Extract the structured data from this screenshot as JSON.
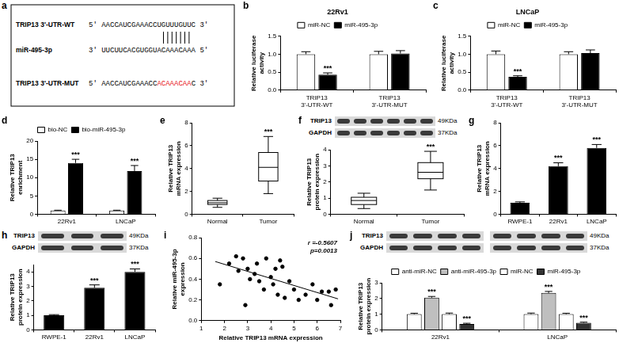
{
  "diagram": {
    "panel": "a",
    "rows": [
      {
        "label": "TRIP13 3'-UTR-WT",
        "parts": [
          {
            "text": "5' AACCAUCGAAACCUGUUUGUUC 3'"
          }
        ]
      },
      {
        "label": "miR-495-3p",
        "parts": [
          {
            "text": "3' UUCUUCACGUGGUACAAACAAA 5'"
          }
        ]
      },
      {
        "label": "TRIP13 3'-UTR-MUT",
        "parts": [
          {
            "text": "5' AACCAUCGAAACC"
          },
          {
            "text": "ACAAACAA",
            "color": "#e8141b"
          },
          {
            "text": "C 3'"
          }
        ]
      }
    ]
  },
  "chart_data": [
    {
      "panel": "b",
      "type": "bar",
      "title": "22Rv1",
      "y_label": "Relative luciferase activity",
      "categories": [
        "TRIP13 3'-UTR-WT",
        "TRIP13 3'-UTR-MUT"
      ],
      "series": [
        {
          "name": "miR-NC",
          "color": "#ffffff",
          "values": [
            1.0,
            1.0
          ],
          "errors": [
            0.07,
            0.08
          ]
        },
        {
          "name": "miR-495-3p",
          "color": "#000000",
          "values": [
            0.43,
            1.02
          ],
          "errors": [
            0.05,
            0.08
          ],
          "significance": [
            "***",
            null
          ]
        }
      ],
      "ylim": [
        0,
        1.5
      ],
      "yticks": [
        {
          "value": 0,
          "label": "0.0"
        },
        0.5,
        {
          "value": 1,
          "label": "1.0"
        },
        1.5
      ],
      "legend": "top"
    },
    {
      "panel": "c",
      "type": "bar",
      "title": "LNCaP",
      "y_label": "Relative luciferase activity",
      "categories": [
        "TRIP13 3'-UTR-WT",
        "TRIP13 3'-UTR-MUT"
      ],
      "series": [
        {
          "name": "miR-NC",
          "color": "#ffffff",
          "values": [
            1.0,
            1.0
          ],
          "errors": [
            0.09,
            0.07
          ]
        },
        {
          "name": "miR-495-3p",
          "color": "#000000",
          "values": [
            0.37,
            1.03
          ],
          "errors": [
            0.03,
            0.09
          ],
          "significance": [
            "***",
            null
          ]
        }
      ],
      "ylim": [
        0,
        1.5
      ],
      "yticks": [
        {
          "value": 0,
          "label": "0.0"
        },
        0.5,
        {
          "value": 1,
          "label": "1.0"
        },
        1.5
      ],
      "legend": "top"
    },
    {
      "panel": "d",
      "type": "bar",
      "y_label": "Relative TRIP13 enrichment",
      "categories": [
        "22Rv1",
        "LNCaP"
      ],
      "series": [
        {
          "name": "bio-NC",
          "color": "#ffffff",
          "values": [
            1.0,
            1.0
          ],
          "errors": [
            0.1,
            0.1
          ]
        },
        {
          "name": "bio-miR-495-3p",
          "color": "#000000",
          "values": [
            14.0,
            11.8
          ],
          "errors": [
            1.0,
            1.5
          ],
          "significance": [
            "***",
            "***"
          ]
        }
      ],
      "ylim": [
        0,
        20
      ],
      "yticks": [
        0,
        5,
        10,
        15,
        20
      ],
      "legend": "top"
    },
    {
      "panel": "e",
      "type": "box",
      "y_label": "Relative TRIP13 mRNA expression",
      "categories": [
        "Normal",
        "Tumor"
      ],
      "color": "#ffffff",
      "boxes": [
        {
          "min": 0.6,
          "q1": 0.85,
          "median": 1.0,
          "q3": 1.2,
          "max": 1.4
        },
        {
          "min": 1.8,
          "q1": 2.9,
          "median": 4.1,
          "q3": 5.4,
          "max": 6.8
        }
      ],
      "significance": [
        null,
        "***"
      ],
      "ylim": [
        0,
        8
      ],
      "yticks": [
        0,
        2,
        4,
        6,
        8
      ]
    },
    {
      "panel": "f",
      "type": "box",
      "y_label": "Relative TRIP13 protein expression",
      "categories": [
        "Normal",
        "Tumor"
      ],
      "color": "#ffffff",
      "blot": {
        "rows": [
          {
            "label": "TRIP13",
            "size": "49KDa"
          },
          {
            "label": "GAPDH",
            "size": "37KDa"
          }
        ]
      },
      "boxes": [
        {
          "min": 0.35,
          "q1": 0.6,
          "median": 0.85,
          "q3": 1.05,
          "max": 1.3
        },
        {
          "min": 1.5,
          "q1": 2.2,
          "median": 2.6,
          "q3": 3.2,
          "max": 3.9
        }
      ],
      "significance": [
        null,
        "***"
      ],
      "ylim": [
        0,
        4
      ],
      "yticks": [
        0,
        1,
        2,
        3,
        4
      ]
    },
    {
      "panel": "g",
      "type": "bar",
      "y_label": "Relative TRIP13 mRNA expression",
      "categories": [
        "RWPE-1",
        "22Rv1",
        "LNCaP"
      ],
      "series": [
        {
          "color": "#000000",
          "values": [
            1.0,
            4.2,
            5.8
          ],
          "errors": [
            0.08,
            0.3,
            0.3
          ],
          "significance": [
            null,
            "***",
            "***"
          ]
        }
      ],
      "ylim": [
        0,
        8
      ],
      "yticks": [
        0,
        2,
        4,
        6,
        8
      ]
    },
    {
      "panel": "h",
      "type": "bar",
      "y_label": "Relative TRIP13 protein expression",
      "categories": [
        "RWPE-1",
        "22Rv1",
        "LNCaP"
      ],
      "blot": {
        "rows": [
          {
            "label": "TRIP13",
            "size": "49KDa"
          },
          {
            "label": "GAPDH",
            "size": "37KDa"
          }
        ]
      },
      "series": [
        {
          "color": "#000000",
          "values": [
            1.0,
            2.9,
            4.0
          ],
          "errors": [
            0.05,
            0.2,
            0.2
          ],
          "significance": [
            null,
            "***",
            "***"
          ]
        }
      ],
      "ylim": [
        0,
        4.5
      ],
      "yticks": [
        0,
        1,
        2,
        3,
        4
      ]
    },
    {
      "panel": "i",
      "type": "scatter",
      "x_label": "Relative TRIP13 mRNA expression",
      "y_label": "Relative miR-495-3p expression",
      "annotations": [
        "r =-0.5607",
        "p=0.0013"
      ],
      "series": [
        {
          "type": "scatter",
          "color": "#000000",
          "x": [
            1.8,
            2.2,
            2.5,
            2.6,
            2.8,
            2.9,
            3.0,
            3.1,
            3.3,
            3.4,
            3.5,
            3.7,
            3.8,
            4.0,
            4.1,
            4.2,
            4.3,
            4.4,
            4.5,
            4.6,
            4.8,
            5.0,
            5.2,
            5.5,
            5.8,
            6.0,
            6.2,
            6.5,
            6.6,
            6.8
          ],
          "values": [
            0.35,
            0.55,
            0.62,
            0.48,
            0.6,
            0.15,
            0.5,
            0.4,
            0.45,
            0.55,
            0.38,
            0.3,
            0.6,
            0.42,
            0.35,
            0.5,
            0.25,
            0.58,
            0.52,
            0.22,
            0.38,
            0.3,
            0.2,
            0.25,
            0.35,
            0.2,
            0.28,
            0.28,
            0.15,
            0.3
          ]
        },
        {
          "type": "line",
          "color": "#000000",
          "x": [
            1.6,
            6.9
          ],
          "values": [
            0.57,
            0.21
          ]
        }
      ],
      "xlim": [
        1,
        7
      ],
      "xticks": [
        1,
        2,
        3,
        4,
        5,
        6,
        7
      ],
      "ylim": [
        0,
        0.8
      ],
      "yticks": [
        {
          "value": 0,
          "label": "0.0"
        },
        0.2,
        0.4,
        0.6,
        0.8
      ]
    },
    {
      "panel": "j",
      "type": "bar",
      "y_label": "Relative TRIP13 protein expression",
      "categories": [
        "22Rv1",
        "LNCaP"
      ],
      "blot": {
        "rows": [
          {
            "label": "TRIP13",
            "size": "49KDa"
          },
          {
            "label": "GAPDH",
            "size": "37KDa"
          }
        ]
      },
      "series": [
        {
          "name": "anti-miR-NC",
          "color": "#ffffff",
          "values": [
            1.0,
            1.0
          ],
          "errors": [
            0.06,
            0.07
          ]
        },
        {
          "name": "anti-miR-495-3p",
          "color": "#bfbfbf",
          "values": [
            2.05,
            2.35
          ],
          "errors": [
            0.08,
            0.1
          ],
          "significance": [
            "***",
            "***"
          ]
        },
        {
          "name": "miR-NC",
          "color": "#ffffff",
          "values": [
            1.0,
            1.0
          ],
          "errors": [
            0.07,
            0.06
          ]
        },
        {
          "name": "miR-495-3p",
          "color": "#333333",
          "values": [
            0.38,
            0.45
          ],
          "errors": [
            0.04,
            0.04
          ],
          "significance": [
            "***",
            "***"
          ]
        }
      ],
      "ylim": [
        0,
        3
      ],
      "yticks": [
        0,
        1,
        2,
        3
      ],
      "legend": "top"
    }
  ]
}
